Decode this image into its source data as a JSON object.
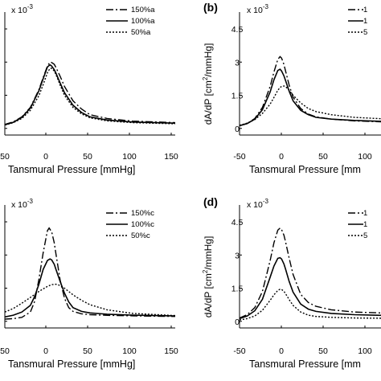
{
  "chart_data": [
    {
      "type": "line",
      "panel_label": "",
      "scale_note": "x 10",
      "scale_exp": "-3",
      "xlabel": "Tansmural Pressure [mmHg]",
      "ylabel": "",
      "xlim": [
        -50,
        150
      ],
      "ylim": [
        -0.3,
        4.9
      ],
      "x_ticks": [
        "50",
        "0",
        "50",
        "100",
        "150"
      ],
      "y_ticks": [],
      "y_ticks_values": [],
      "series": [
        {
          "name": "150%a",
          "dash": "dashdot",
          "x": [
            -50,
            -40,
            -30,
            -20,
            -10,
            -5,
            0,
            3,
            5,
            8,
            10,
            15,
            20,
            30,
            40,
            50,
            70,
            100,
            150
          ],
          "y": [
            0.18,
            0.3,
            0.52,
            0.95,
            1.75,
            2.3,
            2.82,
            3.0,
            2.98,
            2.9,
            2.76,
            2.35,
            1.9,
            1.25,
            0.88,
            0.62,
            0.45,
            0.33,
            0.26
          ]
        },
        {
          "name": "100%a",
          "dash": "solid",
          "x": [
            -50,
            -40,
            -30,
            -20,
            -10,
            -5,
            0,
            3,
            5,
            8,
            10,
            15,
            20,
            30,
            40,
            50,
            70,
            100,
            150
          ],
          "y": [
            0.16,
            0.28,
            0.5,
            0.92,
            1.7,
            2.25,
            2.78,
            2.88,
            2.82,
            2.66,
            2.5,
            2.05,
            1.62,
            1.05,
            0.72,
            0.52,
            0.38,
            0.29,
            0.24
          ]
        },
        {
          "name": "50%a",
          "dash": "dotted",
          "x": [
            -50,
            -40,
            -30,
            -20,
            -10,
            -5,
            0,
            3,
            5,
            8,
            10,
            15,
            20,
            30,
            40,
            50,
            70,
            100,
            150
          ],
          "y": [
            0.15,
            0.26,
            0.45,
            0.82,
            1.48,
            1.98,
            2.52,
            2.72,
            2.72,
            2.6,
            2.44,
            1.95,
            1.5,
            0.95,
            0.66,
            0.48,
            0.34,
            0.26,
            0.21
          ]
        }
      ]
    },
    {
      "type": "line",
      "panel_label": "(b)",
      "scale_note": "x 10",
      "scale_exp": "-3",
      "xlabel": "Tansmural Pressure [mm",
      "ylabel": "dA/dP [cm",
      "ylabel_sup": "2",
      "ylabel_tail": "/mmHg]",
      "xlim": [
        -50,
        135
      ],
      "ylim": [
        -0.3,
        4.9
      ],
      "x_ticks": [
        "-50",
        "0",
        "50",
        "100"
      ],
      "x_ticks_values": [
        -50,
        0,
        50,
        100
      ],
      "y_ticks": [
        "0",
        "1.5",
        "3",
        "4.5"
      ],
      "y_ticks_values": [
        0,
        1.5,
        3,
        4.5
      ],
      "series": [
        {
          "name": "1",
          "dash": "dashdot",
          "x": [
            -50,
            -40,
            -30,
            -20,
            -10,
            -5,
            0,
            3,
            5,
            8,
            10,
            15,
            20,
            30,
            40,
            50,
            70,
            100,
            135
          ],
          "y": [
            0.12,
            0.22,
            0.45,
            0.95,
            1.9,
            2.55,
            3.12,
            3.25,
            3.18,
            2.9,
            2.62,
            1.95,
            1.42,
            0.9,
            0.65,
            0.52,
            0.42,
            0.34,
            0.3
          ]
        },
        {
          "name": "1",
          "dash": "solid",
          "x": [
            -50,
            -40,
            -30,
            -20,
            -10,
            -5,
            0,
            3,
            5,
            8,
            10,
            15,
            20,
            30,
            40,
            50,
            70,
            100,
            135
          ],
          "y": [
            0.12,
            0.22,
            0.42,
            0.85,
            1.65,
            2.2,
            2.62,
            2.68,
            2.6,
            2.38,
            2.18,
            1.68,
            1.25,
            0.82,
            0.62,
            0.5,
            0.42,
            0.36,
            0.32
          ]
        },
        {
          "name": "5",
          "dash": "dotted",
          "x": [
            -50,
            -40,
            -30,
            -20,
            -10,
            -5,
            0,
            3,
            5,
            8,
            10,
            15,
            20,
            30,
            40,
            50,
            70,
            100,
            135
          ],
          "y": [
            0.14,
            0.24,
            0.4,
            0.68,
            1.1,
            1.4,
            1.72,
            1.85,
            1.9,
            1.92,
            1.9,
            1.72,
            1.5,
            1.15,
            0.9,
            0.76,
            0.62,
            0.5,
            0.44
          ]
        }
      ]
    },
    {
      "type": "line",
      "panel_label": "",
      "scale_note": "x 10",
      "scale_exp": "-3",
      "xlabel": "Tansmural Pressure [mmHg]",
      "ylabel": "",
      "xlim": [
        -50,
        150
      ],
      "ylim": [
        -0.3,
        4.9
      ],
      "x_ticks": [
        "50",
        "0",
        "50",
        "100",
        "150"
      ],
      "y_ticks": [],
      "y_ticks_values": [],
      "series": [
        {
          "name": "150%c",
          "dash": "dashdot",
          "x": [
            -50,
            -40,
            -30,
            -20,
            -15,
            -10,
            -5,
            0,
            2,
            5,
            8,
            10,
            15,
            20,
            25,
            30,
            40,
            50,
            70,
            100,
            150
          ],
          "y": [
            0.1,
            0.12,
            0.18,
            0.42,
            0.9,
            1.9,
            3.1,
            4.1,
            4.22,
            4.05,
            3.55,
            3.05,
            1.85,
            1.05,
            0.62,
            0.45,
            0.34,
            0.3,
            0.27,
            0.25,
            0.22
          ]
        },
        {
          "name": "100%c",
          "dash": "solid",
          "x": [
            -50,
            -40,
            -30,
            -20,
            -15,
            -10,
            -5,
            0,
            3,
            5,
            8,
            10,
            15,
            20,
            25,
            30,
            40,
            50,
            70,
            100,
            150
          ],
          "y": [
            0.2,
            0.28,
            0.42,
            0.72,
            1.12,
            1.68,
            2.35,
            2.75,
            2.82,
            2.78,
            2.58,
            2.35,
            1.8,
            1.28,
            0.88,
            0.62,
            0.45,
            0.38,
            0.32,
            0.28,
            0.24
          ]
        },
        {
          "name": "50%c",
          "dash": "dotted",
          "x": [
            -50,
            -40,
            -30,
            -20,
            -10,
            0,
            5,
            10,
            15,
            20,
            30,
            40,
            50,
            70,
            100,
            150
          ],
          "y": [
            0.42,
            0.58,
            0.82,
            1.08,
            1.35,
            1.58,
            1.66,
            1.68,
            1.62,
            1.5,
            1.2,
            0.95,
            0.75,
            0.52,
            0.36,
            0.26
          ]
        }
      ]
    },
    {
      "type": "line",
      "panel_label": "(d)",
      "scale_note": "x 10",
      "scale_exp": "-3",
      "xlabel": "Tansmural Pressure [mm",
      "ylabel": "dA/dP [cm",
      "ylabel_sup": "2",
      "ylabel_tail": "/mmHg]",
      "xlim": [
        -50,
        135
      ],
      "ylim": [
        -0.3,
        4.9
      ],
      "x_ticks": [
        "-50",
        "0",
        "50",
        "100"
      ],
      "x_ticks_values": [
        -50,
        0,
        50,
        100
      ],
      "y_ticks": [
        "0",
        "1.5",
        "3",
        "4.5"
      ],
      "y_ticks_values": [
        0,
        1.5,
        3,
        4.5
      ],
      "series": [
        {
          "name": "1",
          "dash": "dashdot",
          "x": [
            -50,
            -40,
            -30,
            -20,
            -10,
            -5,
            0,
            3,
            5,
            8,
            10,
            15,
            20,
            30,
            40,
            50,
            70,
            100,
            135
          ],
          "y": [
            0.15,
            0.3,
            0.62,
            1.35,
            2.75,
            3.55,
            4.12,
            4.22,
            4.15,
            3.9,
            3.62,
            2.85,
            2.12,
            1.22,
            0.85,
            0.68,
            0.52,
            0.42,
            0.38
          ]
        },
        {
          "name": "1",
          "dash": "solid",
          "x": [
            -50,
            -40,
            -30,
            -20,
            -10,
            -5,
            0,
            3,
            5,
            8,
            10,
            15,
            20,
            30,
            40,
            50,
            70,
            100,
            135
          ],
          "y": [
            0.12,
            0.24,
            0.48,
            1.0,
            2.0,
            2.5,
            2.85,
            2.88,
            2.82,
            2.6,
            2.38,
            1.8,
            1.32,
            0.78,
            0.55,
            0.45,
            0.36,
            0.3,
            0.27
          ]
        },
        {
          "name": "5",
          "dash": "dotted",
          "x": [
            -50,
            -40,
            -30,
            -20,
            -10,
            -5,
            0,
            3,
            5,
            8,
            10,
            15,
            20,
            30,
            40,
            50,
            70,
            100,
            135
          ],
          "y": [
            0.06,
            0.12,
            0.24,
            0.5,
            0.95,
            1.2,
            1.4,
            1.45,
            1.44,
            1.36,
            1.26,
            0.98,
            0.72,
            0.42,
            0.28,
            0.22,
            0.18,
            0.15,
            0.14
          ]
        }
      ]
    }
  ]
}
